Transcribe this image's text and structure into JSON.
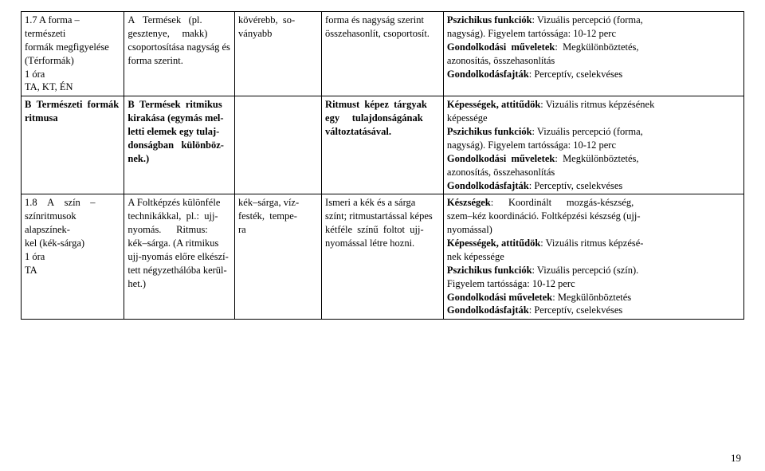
{
  "rows": [
    {
      "c1": {
        "l1a": "1.7 A forma – természeti",
        "l2": "formák megfigyelése",
        "l3": "(Térformák)",
        "l4": "1 óra",
        "l5": "TA, KT, ÉN"
      },
      "c2": {
        "t1": "A   Termések   (pl.",
        "t2": "gesztenye,     makk)",
        "t3": "csoportosítása nagyság és",
        "t4": "forma szerint."
      },
      "c3": {
        "t1": "kövérebb,  so-",
        "t2": "ványabb"
      },
      "c4": {
        "t1": "forma és nagyság szerint",
        "t2": "összehasonlít, csoportosít."
      },
      "c5": {
        "b1": "Pszichikus funkciók",
        "t1": ": Vizuális percepció (forma,",
        "t2": "nagyság). Figyelem tartóssága: 10-12 perc",
        "b3": "Gondolkodási  műveletek",
        "t3": ":  Megkülönböztetés,",
        "t4": "azonosítás, összehasonlítás",
        "b5": "Gondolkodásfajták",
        "t5": ": Perceptív, cselekvéses"
      }
    },
    {
      "c1": {
        "b1": "B  Természeti  formák",
        "b2": "ritmusa"
      },
      "c2": {
        "b1": "B  Termések  ritmikus",
        "b2": "kirakása (egymás mel-",
        "b3": "letti elemek egy tulaj-",
        "b4": "donságban   különböz-",
        "b5": "nek.)"
      },
      "c3": "",
      "c4": {
        "b1": "Ritmust  képez  tárgyak",
        "b2": "egy     tulajdonságának",
        "b3": "változtatásával."
      },
      "c5": {
        "b1": "Képességek, attitűdök",
        "t1": ": Vizuális ritmus képzésének",
        "t2": "képessége",
        "b3": "Pszichikus funkciók",
        "t3": ": Vizuális percepció (forma,",
        "t4": "nagyság). Figyelem tartóssága: 10-12 perc",
        "b5": "Gondolkodási  műveletek",
        "t5": ":  Megkülönböztetés,",
        "t6": "azonosítás, összehasonlítás",
        "b7": "Gondolkodásfajták",
        "t7": ": Perceptív, cselekvéses"
      }
    },
    {
      "c1": {
        "l1": "1.8    A    szín    –",
        "l2": "színritmusok alapszínek-",
        "l3": "kel (kék-sárga)",
        "l4": "1 óra",
        "l5": "TA"
      },
      "c2": {
        "t1": "A Foltképzés különféle",
        "t2": "technikákkal,  pl.:  ujj-",
        "t3": "nyomás.      Ritmus:",
        "t4": "kék–sárga. (A ritmikus",
        "t5": "ujj-nyomás előre elkészí-",
        "t6": "tett négyzethálóba kerül-",
        "t7": "het.)"
      },
      "c3": {
        "t1": "kék–sárga, víz-",
        "t2": "festék,  tempe-",
        "t3": "ra"
      },
      "c4": {
        "t1": "Ismeri a kék és a sárga",
        "t2": "színt; ritmustartással képes",
        "t3": "kétféle  színű  foltot  ujj-",
        "t4": "nyomással létre hozni."
      },
      "c5": {
        "b1": "Készségek",
        "t1": ":      Koordinált      mozgás-készség,",
        "t2": "szem–kéz koordináció. Foltképzési készség (ujj-",
        "t3": "nyomással)",
        "b4": "Képességek, attitűdök",
        "t4": ": Vizuális ritmus képzésé-",
        "t5": "nek képessége",
        "b6": "Pszichikus funkciók",
        "t6": ": Vizuális percepció (szín).",
        "t7": "Figyelem tartóssága: 10-12 perc",
        "b8": "Gondolkodási műveletek",
        "t8": ": Megkülönböztetés",
        "b9": "Gondolkodásfajták",
        "t9": ": Perceptív, cselekvéses"
      }
    }
  ],
  "pageNumber": "19"
}
